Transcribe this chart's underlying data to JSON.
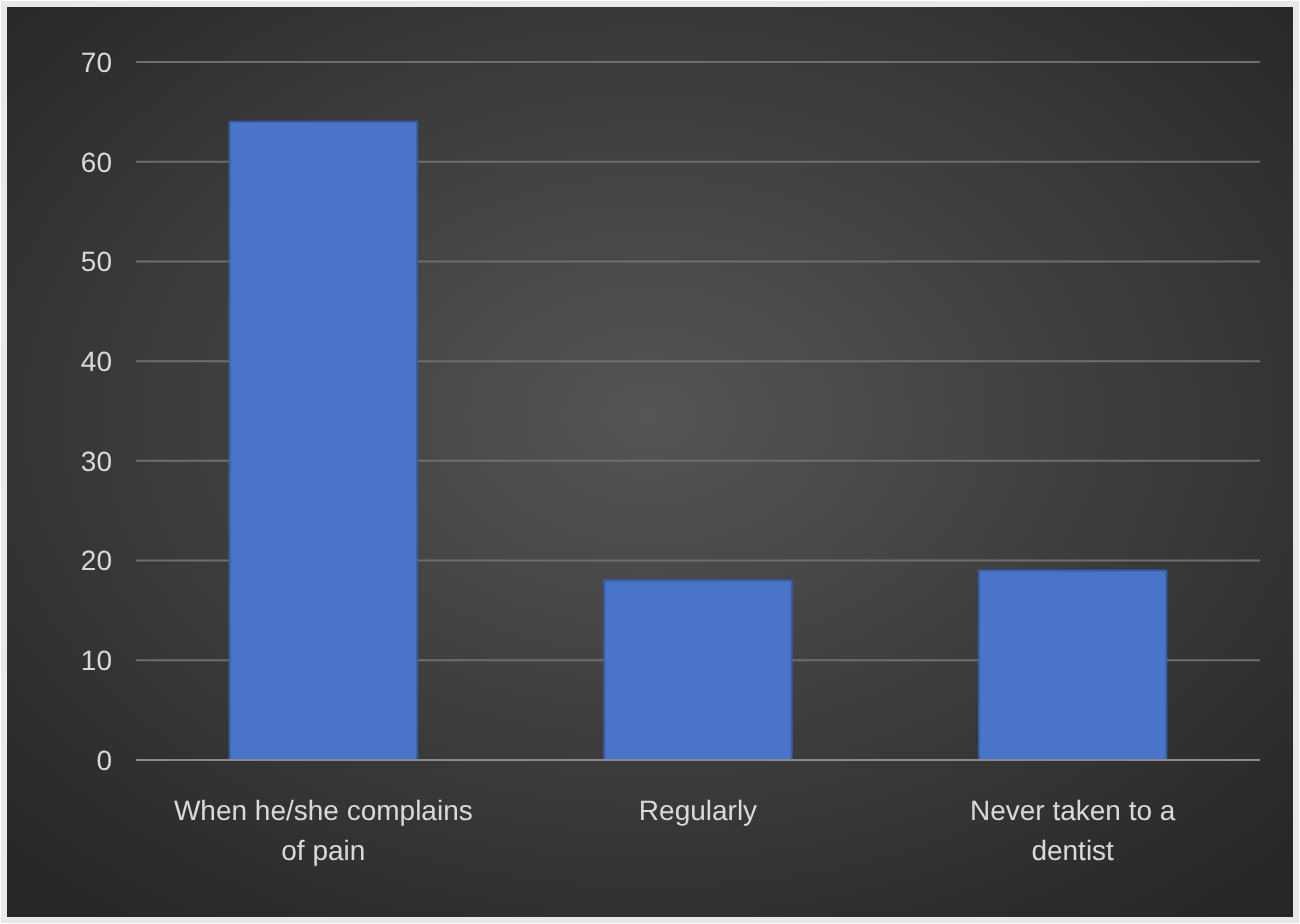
{
  "chart_data": {
    "type": "bar",
    "categories": [
      "When he/she complains of pain",
      "Regularly",
      "Never taken to a dentist"
    ],
    "values": [
      64,
      18,
      19
    ],
    "color": "#4a74c9",
    "ylim": [
      0,
      70
    ],
    "yticks": [
      0,
      10,
      20,
      30,
      40,
      50,
      60,
      70
    ],
    "grid": "y"
  }
}
